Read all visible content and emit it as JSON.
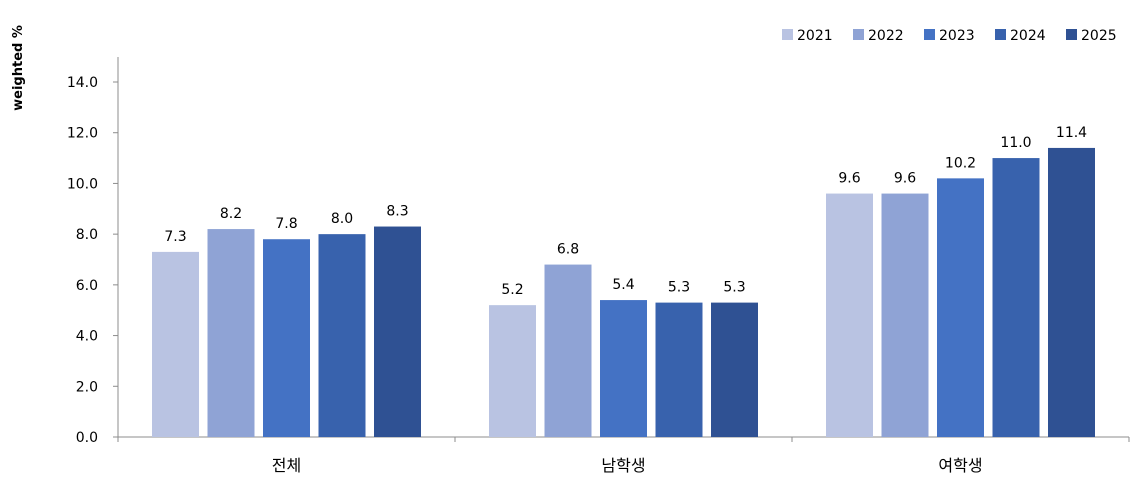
{
  "chart_data": {
    "type": "bar",
    "title": "",
    "xlabel": "",
    "ylabel": "weighted %",
    "categories": [
      "전체",
      "남학생",
      "여학생"
    ],
    "series": [
      {
        "name": "2021",
        "values": [
          7.3,
          5.2,
          9.6
        ],
        "color": "#b9c3e2"
      },
      {
        "name": "2022",
        "values": [
          8.2,
          6.8,
          9.6
        ],
        "color": "#8fa3d5"
      },
      {
        "name": "2023",
        "values": [
          7.8,
          5.4,
          10.2
        ],
        "color": "#4472c4"
      },
      {
        "name": "2024",
        "values": [
          8.0,
          5.3,
          11.0
        ],
        "color": "#3862ad"
      },
      {
        "name": "2025",
        "values": [
          8.3,
          5.3,
          11.4
        ],
        "color": "#2f5193"
      }
    ],
    "ylim": [
      0,
      14
    ],
    "yticks": [
      "0.0",
      "2.0",
      "4.0",
      "6.0",
      "8.0",
      "10.0",
      "12.0",
      "14.0"
    ],
    "grid": false,
    "legend_position": "top-right"
  }
}
